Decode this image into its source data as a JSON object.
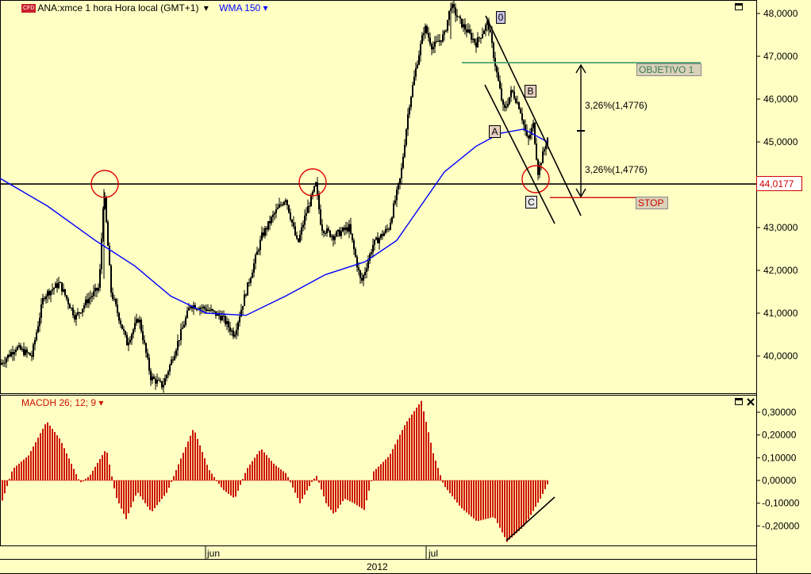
{
  "header": {
    "badge": "CFD",
    "instrument": "ANA:xmce 1 hora Hora local (GMT+1)",
    "indicator": "WMA 150",
    "caret": "▾"
  },
  "macd_header": {
    "label": "MACDH 26; 12; 9",
    "caret": "▾"
  },
  "window_controls": {
    "maximize_icon": "maximize-icon",
    "close_icon": "close-icon"
  },
  "colors": {
    "background": "#ffffc4",
    "price": "#000000",
    "wma": "#0000ff",
    "macd": "#cc1100",
    "target": "#3c9a6a",
    "stop": "#d00000",
    "circle": "#e00000"
  },
  "chart_data": [
    {
      "type": "candlestick",
      "title": "ANA:xmce 1 hora Hora local (GMT+1)",
      "ylim": [
        39100,
        48350
      ],
      "yticks": [
        "48,0000",
        "47,0000",
        "46,0000",
        "45,0000",
        "44,0000",
        "43,0000",
        "42,0000",
        "41,0000",
        "40,0000"
      ],
      "yvalues": [
        48000,
        47000,
        46000,
        45000,
        44000,
        43000,
        42000,
        41000,
        40000
      ],
      "xticks": [
        "jun",
        "jul"
      ],
      "xfooter": "2012",
      "price_path": [
        [
          0,
          39800
        ],
        [
          20,
          40200
        ],
        [
          40,
          40000
        ],
        [
          55,
          41400
        ],
        [
          75,
          41700
        ],
        [
          95,
          40900
        ],
        [
          110,
          41300
        ],
        [
          125,
          41600
        ],
        [
          131,
          43900
        ],
        [
          140,
          41500
        ],
        [
          160,
          40300
        ],
        [
          175,
          40900
        ],
        [
          190,
          39500
        ],
        [
          205,
          39300
        ],
        [
          220,
          40100
        ],
        [
          240,
          41200
        ],
        [
          260,
          41100
        ],
        [
          280,
          40900
        ],
        [
          295,
          40500
        ],
        [
          310,
          41500
        ],
        [
          330,
          42800
        ],
        [
          345,
          43300
        ],
        [
          360,
          43700
        ],
        [
          375,
          42600
        ],
        [
          385,
          43300
        ],
        [
          398,
          44000
        ],
        [
          405,
          43000
        ],
        [
          420,
          42800
        ],
        [
          440,
          43000
        ],
        [
          455,
          41700
        ],
        [
          470,
          42600
        ],
        [
          490,
          43000
        ],
        [
          505,
          44200
        ],
        [
          515,
          45800
        ],
        [
          525,
          46800
        ],
        [
          535,
          47700
        ],
        [
          545,
          47200
        ],
        [
          560,
          47500
        ],
        [
          568,
          48200
        ],
        [
          580,
          47800
        ],
        [
          600,
          47300
        ],
        [
          615,
          47800
        ],
        [
          625,
          46700
        ],
        [
          635,
          45700
        ],
        [
          645,
          46200
        ],
        [
          655,
          45800
        ],
        [
          665,
          45000
        ],
        [
          672,
          45400
        ],
        [
          678,
          44300
        ],
        [
          690,
          45100
        ]
      ],
      "wma_series": {
        "name": "WMA 150",
        "points": [
          [
            0,
            44150
          ],
          [
            60,
            43500
          ],
          [
            120,
            42700
          ],
          [
            170,
            42100
          ],
          [
            215,
            41400
          ],
          [
            260,
            41000
          ],
          [
            310,
            40950
          ],
          [
            360,
            41400
          ],
          [
            410,
            41900
          ],
          [
            460,
            42200
          ],
          [
            500,
            42700
          ],
          [
            530,
            43500
          ],
          [
            560,
            44300
          ],
          [
            600,
            44900
          ],
          [
            630,
            45200
          ],
          [
            660,
            45300
          ],
          [
            690,
            45000
          ]
        ]
      },
      "horizontal_level": {
        "value": 44017.7,
        "label": "44,0177"
      },
      "target": {
        "label": "OBJETIVO 1",
        "value": 46850
      },
      "stop": {
        "label": "STOP",
        "value": 43700
      },
      "measure": {
        "upper_label": "3,26%(1,4776)",
        "lower_label": "3,26%(1,4776)"
      },
      "waves": {
        "zero": "0",
        "a": "A",
        "b": "B",
        "c": "C"
      }
    },
    {
      "type": "bar",
      "title": "MACDH 26; 12; 9",
      "ylim": [
        -0.27,
        0.36
      ],
      "yticks": [
        "0,30000",
        "0,20000",
        "0,10000",
        "0,00000",
        "-0,10000",
        "-0,20000"
      ],
      "yvalues": [
        0.3,
        0.2,
        0.1,
        0.0,
        -0.1,
        -0.2
      ],
      "shape": [
        [
          0,
          -0.11
        ],
        [
          15,
          0.05
        ],
        [
          35,
          0.11
        ],
        [
          58,
          0.26
        ],
        [
          75,
          0.18
        ],
        [
          100,
          -0.01
        ],
        [
          112,
          0.02
        ],
        [
          133,
          0.14
        ],
        [
          145,
          -0.07
        ],
        [
          158,
          -0.17
        ],
        [
          172,
          -0.05
        ],
        [
          190,
          -0.14
        ],
        [
          210,
          -0.05
        ],
        [
          225,
          0.08
        ],
        [
          243,
          0.23
        ],
        [
          262,
          0.05
        ],
        [
          280,
          -0.04
        ],
        [
          295,
          -0.08
        ],
        [
          310,
          0.05
        ],
        [
          328,
          0.14
        ],
        [
          345,
          0.07
        ],
        [
          360,
          0.03
        ],
        [
          377,
          -0.1
        ],
        [
          393,
          0.0
        ],
        [
          398,
          0.02
        ],
        [
          410,
          -0.1
        ],
        [
          420,
          -0.15
        ],
        [
          433,
          -0.08
        ],
        [
          445,
          -0.1
        ],
        [
          458,
          -0.13
        ],
        [
          470,
          0.04
        ],
        [
          490,
          0.11
        ],
        [
          510,
          0.25
        ],
        [
          530,
          0.35
        ],
        [
          545,
          0.12
        ],
        [
          558,
          -0.02
        ],
        [
          580,
          -0.12
        ],
        [
          600,
          -0.18
        ],
        [
          622,
          -0.16
        ],
        [
          638,
          -0.27
        ],
        [
          660,
          -0.2
        ],
        [
          680,
          -0.08
        ],
        [
          690,
          -0.01
        ]
      ]
    }
  ]
}
